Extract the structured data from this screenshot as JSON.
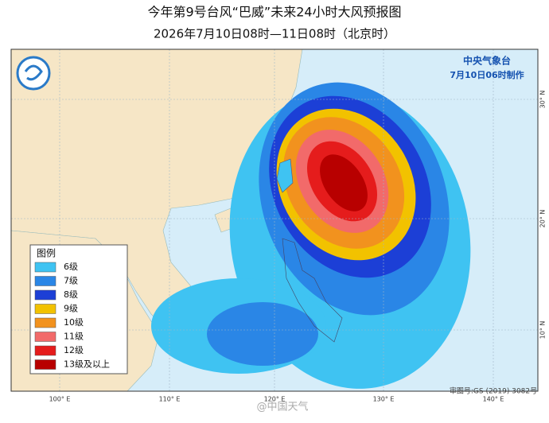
{
  "header": {
    "title": "今年第9号台风“巴威”未来24小时大风预报图",
    "subtitle": "2026年7月10日08时—11日08时（北京时）"
  },
  "issuer": {
    "agency": "中央气象台",
    "issued": "7月10日06时制作"
  },
  "legend": {
    "title": "图例",
    "items": [
      {
        "label": "6级",
        "color": "#3fc3f2"
      },
      {
        "label": "7级",
        "color": "#2a86e6"
      },
      {
        "label": "8级",
        "color": "#1c3fd6"
      },
      {
        "label": "9级",
        "color": "#f2c200"
      },
      {
        "label": "10级",
        "color": "#f2921e"
      },
      {
        "label": "11级",
        "color": "#f26a6a"
      },
      {
        "label": "12级",
        "color": "#e51c1c"
      },
      {
        "label": "13级及以上",
        "color": "#b80000"
      }
    ]
  },
  "axes": {
    "longitude": [
      "100° E",
      "110° E",
      "120° E",
      "130° E",
      "140° E"
    ],
    "latitude": [
      "30° N",
      "20° N",
      "10° N"
    ]
  },
  "footer": {
    "review": "审图号:GS (2019) 3082号",
    "watermark": "@中国天气"
  }
}
